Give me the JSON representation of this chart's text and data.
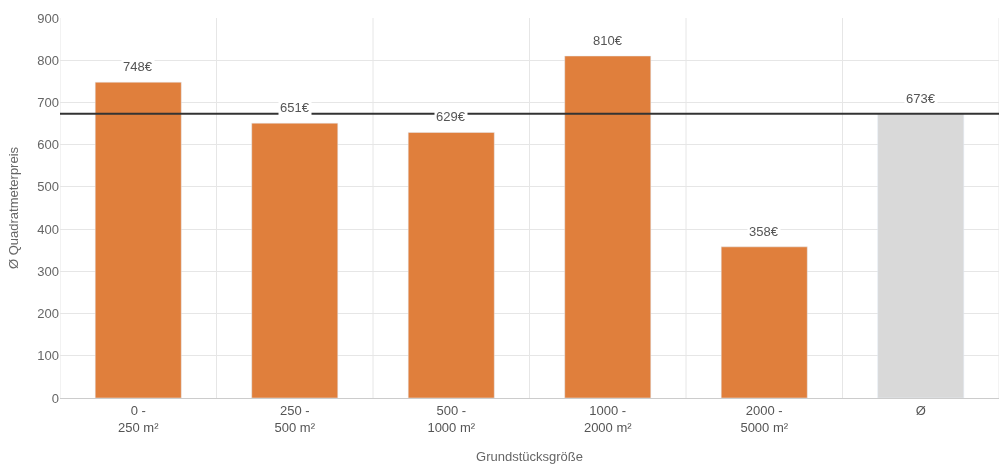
{
  "chart_data": {
    "type": "bar",
    "xlabel": "Grundstücksgröße",
    "ylabel": "Ø Quadratmeterpreis",
    "categories": [
      "0 -\n250 m²",
      "250 -\n500 m²",
      "500 -\n1000 m²",
      "1000 -\n2000 m²",
      "2000 -\n5000 m²",
      "Ø"
    ],
    "values": [
      748,
      651,
      629,
      810,
      358,
      673
    ],
    "colors": [
      "#e07f3c",
      "#e07f3c",
      "#e07f3c",
      "#e07f3c",
      "#e07f3c",
      "#d9d9d9"
    ],
    "value_labels": [
      "748€",
      "651€",
      "629€",
      "810€",
      "358€",
      "673€"
    ],
    "ylim": [
      0,
      900
    ],
    "yticks": [
      0,
      100,
      200,
      300,
      400,
      500,
      600,
      700,
      800,
      900
    ],
    "grid": true,
    "ref_lines": [
      {
        "axis": "y",
        "value": 673,
        "color": "#333333"
      }
    ]
  }
}
